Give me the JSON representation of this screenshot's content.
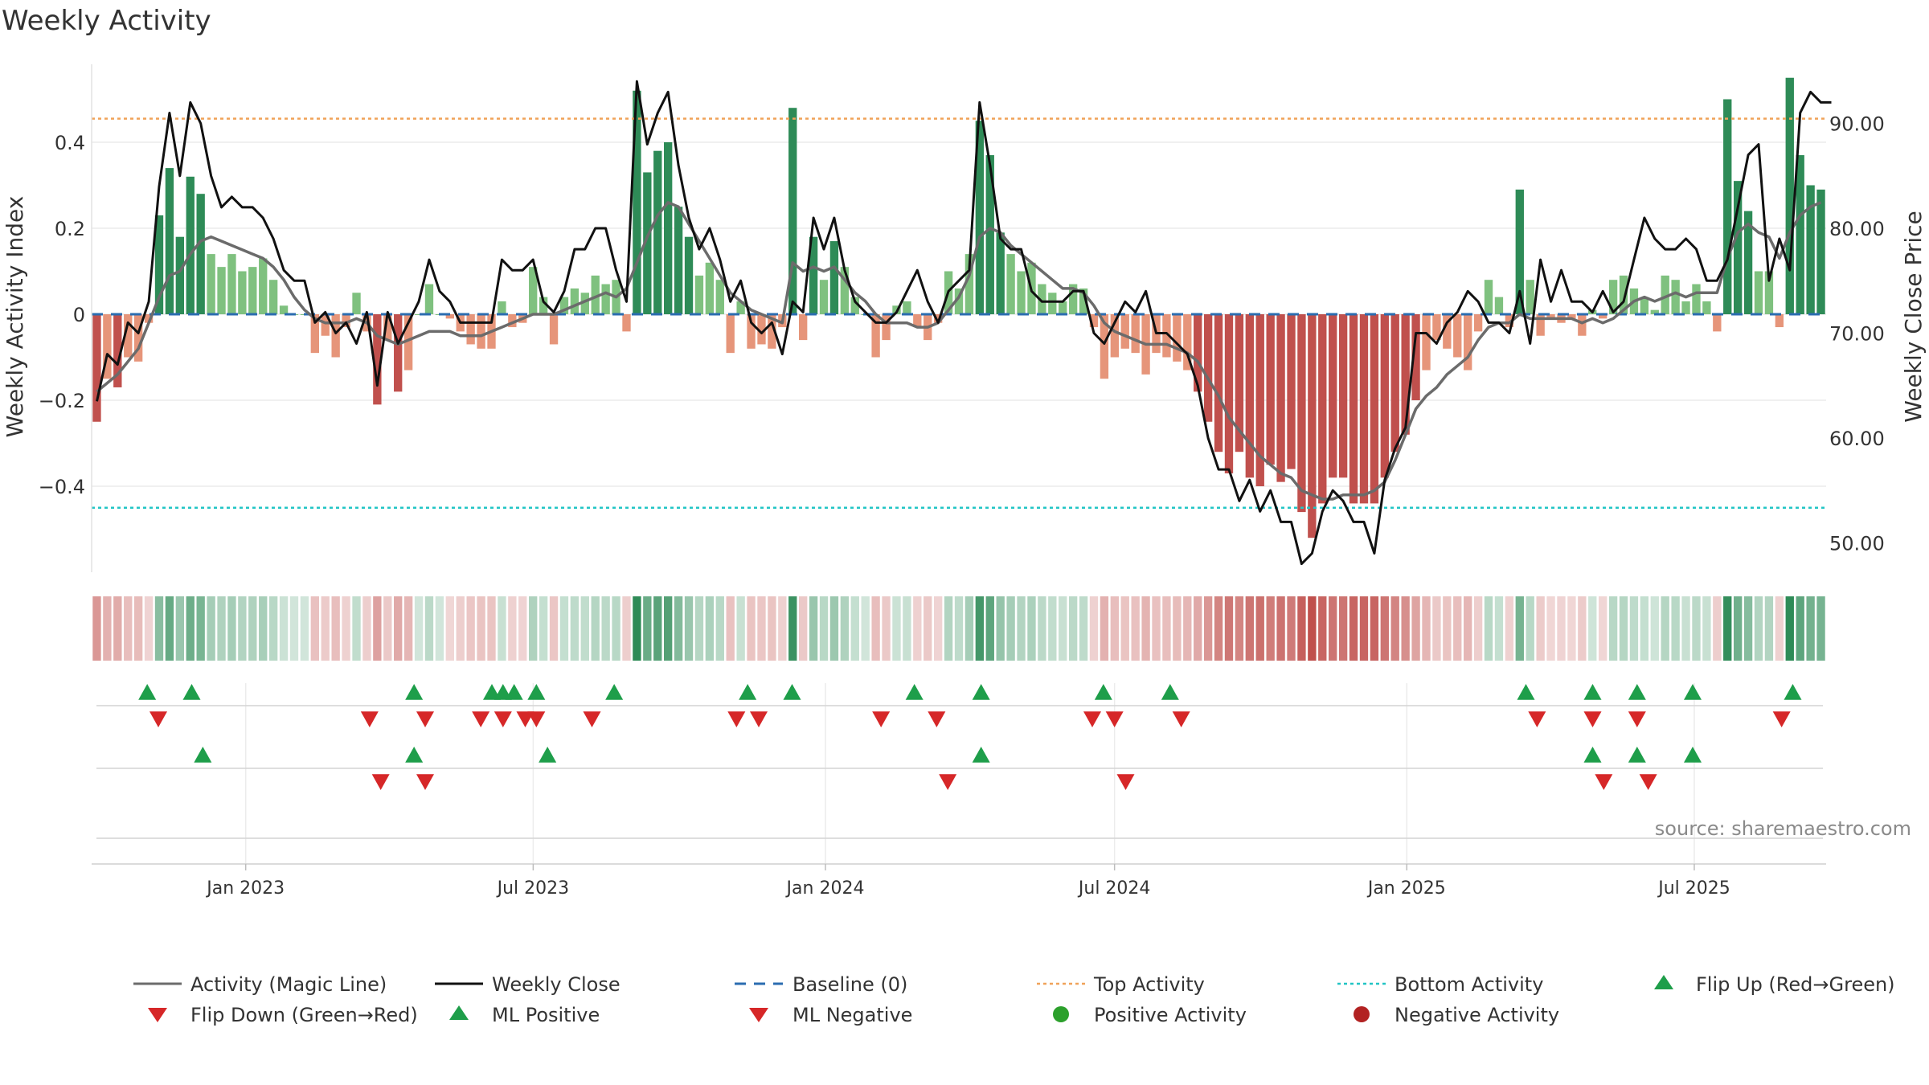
{
  "chart_data": {
    "type": "bar",
    "title": "Weekly Activity",
    "ylabel_left": "Weekly Activity Index",
    "ylabel_right": "Weekly Close Price",
    "source": "source: sharemaestro.com",
    "left_axis": {
      "range": [
        -0.6,
        0.6
      ],
      "ticks": [
        0.4,
        0.2,
        0,
        -0.2,
        -0.4
      ],
      "tick_labels": [
        "0.4",
        "0.2",
        "0",
        "−0.2",
        "−0.4"
      ]
    },
    "right_axis": {
      "range": [
        47.2,
        96.4
      ],
      "ticks": [
        90,
        80,
        70,
        60,
        50
      ],
      "tick_labels": [
        "90.00",
        "80.00",
        "70.00",
        "60.00",
        "50.00"
      ]
    },
    "x_axis": {
      "start": "2022-09-26",
      "end": "2025-09-22",
      "ticks": [
        "2023-01-01",
        "2023-07-01",
        "2024-01-01",
        "2024-07-01",
        "2025-01-01",
        "2025-07-01"
      ],
      "tick_labels": [
        "Jan 2023",
        "Jul 2023",
        "Jan 2024",
        "Jul 2024",
        "Jan 2025",
        "Jul 2025"
      ]
    },
    "reference_lines": {
      "baseline": 0,
      "top_activity": 0.455,
      "bottom_activity": -0.45
    },
    "activity_values": [
      -0.25,
      -0.15,
      -0.17,
      -0.1,
      -0.11,
      -0.02,
      0.23,
      0.34,
      0.18,
      0.32,
      0.28,
      0.14,
      0.11,
      0.14,
      0.1,
      0.11,
      0.13,
      0.08,
      0.02,
      0,
      0,
      -0.09,
      -0.05,
      -0.1,
      -0.03,
      0.05,
      -0.04,
      -0.21,
      -0.06,
      -0.18,
      -0.13,
      0,
      0.07,
      0,
      -0.01,
      -0.04,
      -0.07,
      -0.08,
      -0.08,
      0.03,
      -0.03,
      -0.02,
      0.11,
      0.04,
      -0.07,
      0.04,
      0.06,
      0.05,
      0.09,
      0.07,
      0.08,
      -0.04,
      0.52,
      0.33,
      0.38,
      0.4,
      0.25,
      0.18,
      0.09,
      0.12,
      0.08,
      -0.09,
      0.03,
      -0.08,
      -0.07,
      -0.08,
      -0.03,
      0.48,
      -0.06,
      0.18,
      0.08,
      0.17,
      0.11,
      0.04,
      0,
      -0.1,
      -0.06,
      0.02,
      0.03,
      -0.03,
      -0.06,
      -0.02,
      0.1,
      0.06,
      0.14,
      0.45,
      0.37,
      0.19,
      0.14,
      0.1,
      0.12,
      0.07,
      0.05,
      0.03,
      0.07,
      0.06,
      -0.03,
      -0.15,
      -0.1,
      -0.08,
      -0.09,
      -0.14,
      -0.09,
      -0.1,
      -0.11,
      -0.13,
      -0.18,
      -0.25,
      -0.32,
      -0.37,
      -0.32,
      -0.38,
      -0.4,
      -0.35,
      -0.39,
      -0.36,
      -0.46,
      -0.52,
      -0.44,
      -0.38,
      -0.38,
      -0.44,
      -0.44,
      -0.44,
      -0.38,
      -0.32,
      -0.28,
      -0.2,
      -0.13,
      -0.06,
      -0.08,
      -0.1,
      -0.13,
      -0.04,
      0.08,
      0.04,
      -0.03,
      0.29,
      0.08,
      -0.05,
      -0.01,
      -0.02,
      -0.01,
      -0.05,
      0.01,
      -0.01,
      0.08,
      0.09,
      0.06,
      0.04,
      0.01,
      0.09,
      0.08,
      0.03,
      0.07,
      0.03,
      -0.04,
      0.5,
      0.31,
      0.24,
      0.1,
      0.1,
      -0.03,
      0.55,
      0.37,
      0.3,
      0.29
    ],
    "magic_line": [
      -0.18,
      -0.16,
      -0.14,
      -0.11,
      -0.08,
      -0.02,
      0.04,
      0.09,
      0.1,
      0.14,
      0.17,
      0.18,
      0.17,
      0.16,
      0.15,
      0.14,
      0.13,
      0.11,
      0.08,
      0.04,
      0.01,
      -0.01,
      -0.02,
      -0.02,
      -0.02,
      -0.01,
      -0.02,
      -0.05,
      -0.06,
      -0.07,
      -0.06,
      -0.05,
      -0.04,
      -0.04,
      -0.04,
      -0.05,
      -0.05,
      -0.05,
      -0.04,
      -0.03,
      -0.02,
      -0.01,
      0,
      0,
      0,
      0.01,
      0.02,
      0.03,
      0.04,
      0.05,
      0.04,
      0.06,
      0.12,
      0.18,
      0.23,
      0.26,
      0.25,
      0.21,
      0.17,
      0.13,
      0.09,
      0.05,
      0.03,
      0.01,
      0,
      -0.01,
      -0.02,
      0.12,
      0.1,
      0.11,
      0.1,
      0.11,
      0.08,
      0.05,
      0.03,
      0,
      -0.02,
      -0.02,
      -0.02,
      -0.03,
      -0.03,
      -0.02,
      0.01,
      0.04,
      0.09,
      0.18,
      0.2,
      0.19,
      0.16,
      0.14,
      0.12,
      0.1,
      0.08,
      0.06,
      0.06,
      0.05,
      0.02,
      -0.02,
      -0.04,
      -0.05,
      -0.06,
      -0.07,
      -0.07,
      -0.07,
      -0.08,
      -0.09,
      -0.11,
      -0.15,
      -0.19,
      -0.24,
      -0.27,
      -0.3,
      -0.33,
      -0.35,
      -0.37,
      -0.38,
      -0.41,
      -0.42,
      -0.43,
      -0.43,
      -0.42,
      -0.42,
      -0.42,
      -0.41,
      -0.39,
      -0.34,
      -0.28,
      -0.22,
      -0.19,
      -0.17,
      -0.14,
      -0.12,
      -0.1,
      -0.06,
      -0.03,
      -0.02,
      -0.02,
      0,
      -0.01,
      -0.01,
      -0.01,
      -0.01,
      -0.01,
      -0.02,
      -0.01,
      -0.02,
      -0.01,
      0.01,
      0.03,
      0.04,
      0.03,
      0.04,
      0.05,
      0.04,
      0.05,
      0.05,
      0.05,
      0.13,
      0.19,
      0.21,
      0.19,
      0.18,
      0.13,
      0.19,
      0.23,
      0.25,
      0.26
    ],
    "weekly_close": [
      63.5,
      68,
      67,
      71,
      70,
      73,
      84,
      91,
      85,
      92,
      90,
      85,
      82,
      83,
      82,
      82,
      81,
      79,
      76,
      75,
      75,
      71,
      72,
      70,
      71,
      69,
      72,
      65,
      72,
      69,
      71,
      73,
      77,
      74,
      73,
      71,
      71,
      71,
      71,
      77,
      76,
      76,
      77,
      73,
      72,
      74,
      78,
      78,
      80,
      80,
      76,
      73,
      94,
      88,
      91,
      93,
      86,
      81,
      78,
      80,
      77,
      73,
      75,
      71,
      70,
      71,
      68,
      73,
      72,
      81,
      78,
      81,
      76,
      73,
      72,
      71,
      71,
      72,
      74,
      76,
      73,
      71,
      74,
      75,
      76,
      92,
      86,
      79,
      78,
      78,
      74,
      73,
      73,
      73,
      74,
      74,
      70,
      69,
      71,
      73,
      72,
      74,
      70,
      70,
      69,
      68,
      65,
      60,
      57,
      57,
      54,
      56,
      53,
      55,
      52,
      52,
      48,
      49,
      53,
      55,
      54,
      52,
      52,
      49,
      56,
      59,
      61,
      70,
      70,
      69,
      71,
      72,
      74,
      73,
      71,
      71,
      70,
      74,
      69,
      77,
      73,
      76,
      73,
      73,
      72,
      74,
      72,
      73,
      77,
      81,
      79,
      78,
      78,
      79,
      78,
      75,
      75,
      77,
      82,
      87,
      88,
      75,
      79,
      76,
      91,
      93,
      92,
      92
    ],
    "heat_strip": "weekly activity colour strip (red = negative, green = positive)",
    "signal_rows": {
      "flip_up_dates": [
        "2022-10-31",
        "2022-11-28",
        "2023-04-17",
        "2023-06-05",
        "2023-06-12",
        "2023-06-19",
        "2023-07-03",
        "2023-08-21",
        "2023-11-13",
        "2023-12-11",
        "2024-02-26",
        "2024-04-08",
        "2024-06-24",
        "2024-08-05",
        "2025-03-17",
        "2025-04-28",
        "2025-05-26",
        "2025-06-30",
        "2025-09-01"
      ],
      "flip_down_dates": [
        "2022-11-07",
        "2023-03-20",
        "2023-04-24",
        "2023-05-29",
        "2023-06-12",
        "2023-06-26",
        "2023-07-03",
        "2023-08-07",
        "2023-11-06",
        "2023-11-20",
        "2024-02-05",
        "2024-03-11",
        "2024-06-17",
        "2024-07-01",
        "2024-08-12",
        "2025-03-24",
        "2025-04-28",
        "2025-05-26",
        "2025-08-25"
      ],
      "ml_positive_dates": [
        "2022-12-05",
        "2023-04-17",
        "2023-07-10",
        "2024-04-08",
        "2025-04-28",
        "2025-05-26",
        "2025-06-30"
      ],
      "ml_negative_dates": [
        "2023-03-27",
        "2023-04-24",
        "2024-03-18",
        "2024-07-08",
        "2025-05-05",
        "2025-06-02"
      ]
    },
    "legend": {
      "activity_line": "Activity (Magic Line)",
      "weekly_close": "Weekly Close",
      "baseline": "Baseline (0)",
      "top_activity": "Top Activity",
      "bottom_activity": "Bottom Activity",
      "flip_up": "Flip Up (Red→Green)",
      "flip_down": "Flip Down (Green→Red)",
      "ml_positive": "ML Positive",
      "ml_negative": "ML Negative",
      "positive_activity": "Positive Activity",
      "negative_activity": "Negative Activity"
    },
    "colors": {
      "pos_strong": "#2e8b57",
      "pos_light": "#7fc17f",
      "neg_strong": "#c0504d",
      "neg_light": "#e6957a",
      "magic_line": "#6b6b6b",
      "close": "#111111",
      "baseline": "#2b6cb0",
      "top": "#f0a35a",
      "bottom": "#22c5c5",
      "signal_up": "#1e9e4a",
      "signal_down": "#d62728",
      "positive_dot": "#2ca02c",
      "negative_dot": "#b22222"
    }
  }
}
